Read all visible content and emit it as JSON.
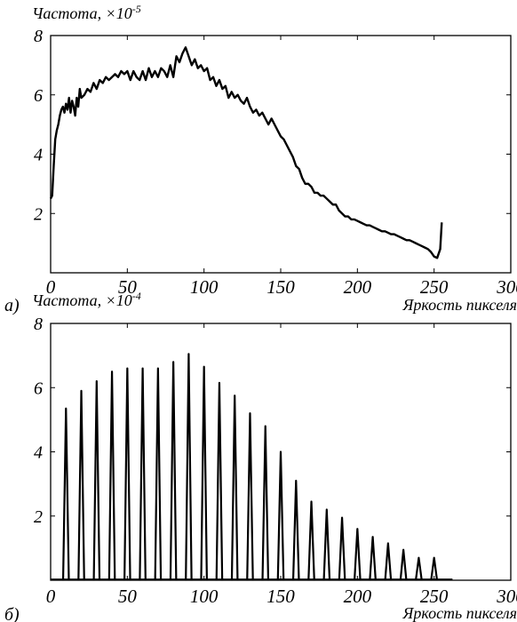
{
  "chart_data": [
    {
      "type": "line",
      "panel_label": "a)",
      "ylabel_main": "Частота, ×10",
      "ylabel_exp": "-5",
      "xlabel": "Яркость пикселя",
      "xlim": [
        0,
        300
      ],
      "ylim": [
        0,
        8
      ],
      "xticks": [
        0,
        50,
        100,
        150,
        200,
        250,
        300
      ],
      "yticks": [
        2,
        4,
        6,
        8
      ],
      "ytick_labels_shown": [
        "2",
        "4",
        "6",
        "8"
      ],
      "series": [
        {
          "x": [
            0,
            1,
            2,
            3,
            4,
            5,
            6,
            7,
            8,
            9,
            10,
            11,
            12,
            13,
            14,
            15,
            16,
            17,
            18,
            19,
            20,
            22,
            24,
            26,
            28,
            30,
            32,
            34,
            36,
            38,
            40,
            42,
            44,
            46,
            48,
            50,
            52,
            54,
            56,
            58,
            60,
            62,
            64,
            66,
            68,
            70,
            72,
            74,
            76,
            78,
            80,
            82,
            84,
            86,
            88,
            90,
            92,
            94,
            96,
            98,
            100,
            102,
            104,
            106,
            108,
            110,
            112,
            114,
            116,
            118,
            120,
            122,
            124,
            126,
            128,
            130,
            132,
            134,
            136,
            138,
            140,
            142,
            144,
            146,
            148,
            150,
            152,
            154,
            156,
            158,
            160,
            162,
            164,
            166,
            168,
            170,
            172,
            174,
            176,
            178,
            180,
            182,
            184,
            186,
            188,
            190,
            192,
            194,
            196,
            198,
            200,
            202,
            204,
            206,
            208,
            210,
            212,
            214,
            216,
            218,
            220,
            222,
            224,
            226,
            228,
            230,
            232,
            234,
            236,
            238,
            240,
            242,
            244,
            246,
            248,
            250,
            252,
            254,
            255
          ],
          "y": [
            2.5,
            2.6,
            3.6,
            4.5,
            4.8,
            5.0,
            5.3,
            5.5,
            5.6,
            5.4,
            5.7,
            5.5,
            5.9,
            5.4,
            5.8,
            5.6,
            5.3,
            5.9,
            5.6,
            6.2,
            5.9,
            6.0,
            6.2,
            6.1,
            6.4,
            6.2,
            6.5,
            6.4,
            6.6,
            6.5,
            6.6,
            6.7,
            6.6,
            6.8,
            6.7,
            6.8,
            6.5,
            6.8,
            6.6,
            6.5,
            6.8,
            6.5,
            6.9,
            6.6,
            6.8,
            6.6,
            6.9,
            6.8,
            6.6,
            7.0,
            6.6,
            7.3,
            7.1,
            7.4,
            7.6,
            7.3,
            7.0,
            7.2,
            6.9,
            7.0,
            6.8,
            6.9,
            6.5,
            6.6,
            6.3,
            6.5,
            6.2,
            6.3,
            5.9,
            6.1,
            5.9,
            6.0,
            5.8,
            5.7,
            5.9,
            5.6,
            5.4,
            5.5,
            5.3,
            5.4,
            5.2,
            5.0,
            5.2,
            5.0,
            4.8,
            4.6,
            4.5,
            4.3,
            4.1,
            3.9,
            3.6,
            3.5,
            3.2,
            3.0,
            3.0,
            2.9,
            2.7,
            2.7,
            2.6,
            2.6,
            2.5,
            2.4,
            2.3,
            2.3,
            2.1,
            2.0,
            1.9,
            1.9,
            1.8,
            1.8,
            1.75,
            1.7,
            1.65,
            1.6,
            1.6,
            1.55,
            1.5,
            1.45,
            1.4,
            1.4,
            1.35,
            1.3,
            1.3,
            1.25,
            1.2,
            1.15,
            1.1,
            1.1,
            1.05,
            1.0,
            0.95,
            0.9,
            0.85,
            0.8,
            0.7,
            0.55,
            0.5,
            0.8,
            1.7
          ]
        }
      ]
    },
    {
      "type": "bar",
      "panel_label": "б)",
      "ylabel_main": "Частота, ×10",
      "ylabel_exp": "-4",
      "xlabel": "Яркость пикселя",
      "xlim": [
        0,
        300
      ],
      "ylim": [
        0,
        8
      ],
      "xticks": [
        0,
        50,
        100,
        150,
        200,
        250,
        300
      ],
      "yticks": [
        2,
        4,
        6,
        8
      ],
      "ytick_labels_shown": [
        "2",
        "4",
        "6",
        "8"
      ],
      "series": [
        {
          "x": [
            10,
            20,
            30,
            40,
            50,
            60,
            70,
            80,
            90,
            100,
            110,
            120,
            130,
            140,
            150,
            160,
            170,
            180,
            190,
            200,
            210,
            220,
            230,
            240,
            250
          ],
          "y": [
            5.35,
            5.9,
            6.2,
            6.5,
            6.6,
            6.6,
            6.6,
            6.8,
            7.05,
            6.65,
            6.15,
            5.75,
            5.2,
            4.8,
            4.0,
            3.1,
            2.45,
            2.2,
            1.95,
            1.6,
            1.35,
            1.15,
            0.95,
            0.7,
            0.7
          ]
        }
      ]
    }
  ]
}
